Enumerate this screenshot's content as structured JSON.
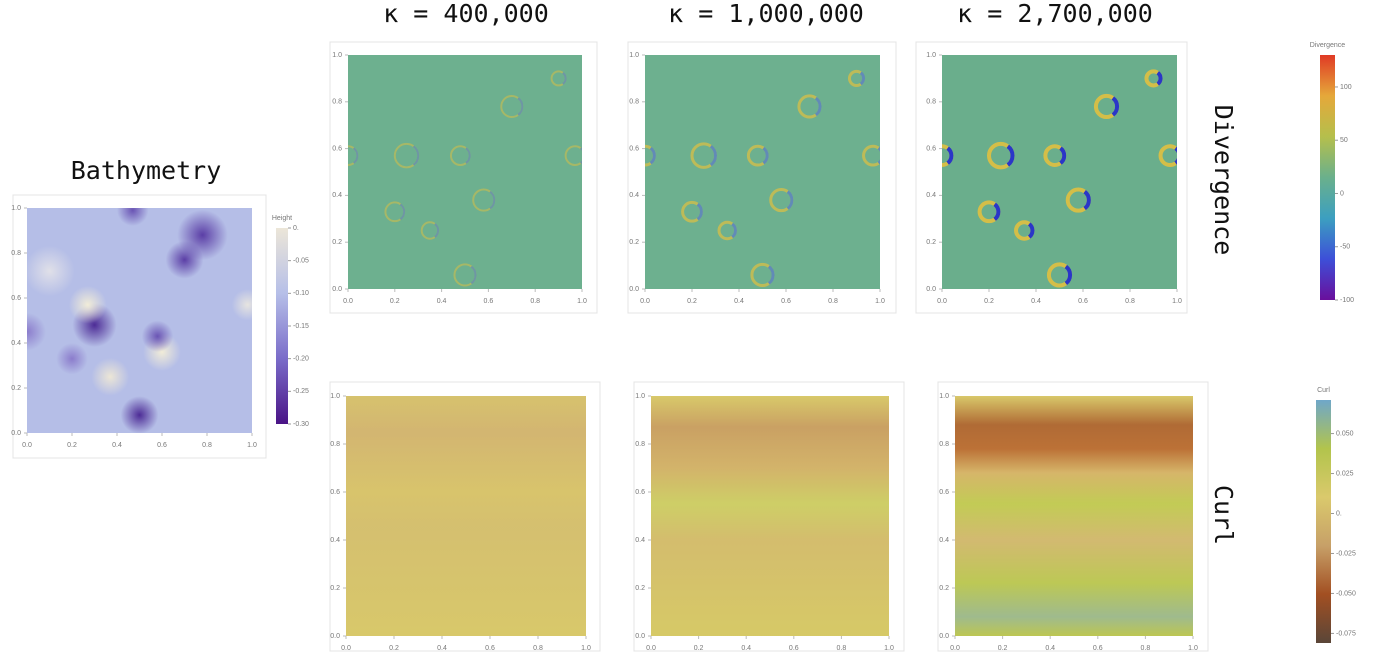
{
  "row_labels": [
    "Divergence",
    "Curl"
  ],
  "chart_data": [
    {
      "type": "heatmap",
      "title": "Bathymetry",
      "color": "#b5bee7",
      "xlim": [
        0,
        1
      ],
      "ylim": [
        0,
        1
      ],
      "xticks": [
        {
          "value": 0,
          "label": "0.0"
        },
        0.2,
        0.4,
        0.6,
        0.8,
        {
          "value": 1,
          "label": "1.0"
        }
      ],
      "yticks": [
        {
          "value": 0,
          "label": "0.0"
        },
        0.2,
        0.4,
        0.6,
        0.8,
        {
          "value": 1,
          "label": "1.0"
        }
      ]
    },
    {
      "type": "heatmap",
      "title": "κ = 400,000",
      "color": "#6db08f",
      "xlim": [
        0,
        1
      ],
      "ylim": [
        0,
        1
      ],
      "xticks": [
        {
          "value": 0,
          "label": "0.0"
        },
        0.2,
        0.4,
        0.6,
        0.8,
        {
          "value": 1,
          "label": "1.0"
        }
      ],
      "yticks": [
        {
          "value": 0,
          "label": "0.0"
        },
        0.2,
        0.4,
        0.6,
        0.8,
        {
          "value": 1,
          "label": "1.0"
        }
      ]
    },
    {
      "type": "heatmap",
      "title": "κ = 1,000,000",
      "color": "#6db08f",
      "xlim": [
        0,
        1
      ],
      "ylim": [
        0,
        1
      ],
      "xticks": [
        {
          "value": 0,
          "label": "0.0"
        },
        0.2,
        0.4,
        0.6,
        0.8,
        {
          "value": 1,
          "label": "1.0"
        }
      ],
      "yticks": [
        {
          "value": 0,
          "label": "0.0"
        },
        0.2,
        0.4,
        0.6,
        0.8,
        {
          "value": 1,
          "label": "1.0"
        }
      ]
    },
    {
      "type": "heatmap",
      "title": "κ = 2,700,000",
      "color": "#6aae8c",
      "xlim": [
        0,
        1
      ],
      "ylim": [
        0,
        1
      ],
      "xticks": [
        {
          "value": 0,
          "label": "0.0"
        },
        0.2,
        0.4,
        0.6,
        0.8,
        {
          "value": 1,
          "label": "1.0"
        }
      ],
      "yticks": [
        {
          "value": 0,
          "label": "0.0"
        },
        0.2,
        0.4,
        0.6,
        0.8,
        {
          "value": 1,
          "label": "1.0"
        }
      ]
    },
    {
      "type": "heatmap",
      "color": "#d8c36c",
      "xlim": [
        0,
        1
      ],
      "ylim": [
        0,
        1
      ],
      "xticks": [
        {
          "value": 0,
          "label": "0.0"
        },
        0.2,
        0.4,
        0.6,
        0.8,
        {
          "value": 1,
          "label": "1.0"
        }
      ],
      "yticks": [
        {
          "value": 0,
          "label": "0.0"
        },
        0.2,
        0.4,
        0.6,
        0.8,
        {
          "value": 1,
          "label": "1.0"
        }
      ]
    },
    {
      "type": "heatmap",
      "color": "#d8c66a",
      "xlim": [
        0,
        1
      ],
      "ylim": [
        0,
        1
      ],
      "xticks": [
        {
          "value": 0,
          "label": "0.0"
        },
        0.2,
        0.4,
        0.6,
        0.8,
        {
          "value": 1,
          "label": "1.0"
        }
      ],
      "yticks": [
        {
          "value": 0,
          "label": "0.0"
        },
        0.2,
        0.4,
        0.6,
        0.8,
        {
          "value": 1,
          "label": "1.0"
        }
      ]
    },
    {
      "type": "heatmap",
      "color": "#d6c868",
      "xlim": [
        0,
        1
      ],
      "ylim": [
        0,
        1
      ],
      "xticks": [
        {
          "value": 0,
          "label": "0.0"
        },
        0.2,
        0.4,
        0.6,
        0.8,
        {
          "value": 1,
          "label": "1.0"
        }
      ],
      "yticks": [
        {
          "value": 0,
          "label": "0.0"
        },
        0.2,
        0.4,
        0.6,
        0.8,
        {
          "value": 1,
          "label": "1.0"
        }
      ]
    },
    {
      "type": "colorbar",
      "title": "Height",
      "lim": [
        -0.3,
        0
      ],
      "colors": [
        "#4a1486",
        "#7a6cc9",
        "#b6bfe8",
        "#ece6d8"
      ],
      "ticks": [
        {
          "value": 0,
          "label": "0."
        },
        -0.05,
        {
          "value": -0.1,
          "label": "-0.10"
        },
        -0.15,
        {
          "value": -0.2,
          "label": "-0.20"
        },
        -0.25,
        {
          "value": -0.3,
          "label": "-0.30"
        }
      ]
    },
    {
      "type": "colorbar",
      "title": "Divergence",
      "lim": [
        -100,
        130
      ],
      "colors": [
        "#6a0f9c",
        "#3d4fd8",
        "#3c9fc0",
        "#6ab08c",
        "#b5bf4c",
        "#e5a83a",
        "#e03a25"
      ],
      "ticks": [
        100,
        50,
        0,
        -50,
        -100
      ]
    },
    {
      "type": "colorbar",
      "title": "Curl",
      "lim": [
        -0.081,
        0.071
      ],
      "colors": [
        "#5a4638",
        "#a24f22",
        "#c7a068",
        "#dac96c",
        "#b2c44c",
        "#6fa7c9"
      ],
      "ticks": [
        {
          "value": 0.05,
          "label": "0.050"
        },
        0.025,
        {
          "value": 0,
          "label": "0."
        },
        -0.025,
        {
          "value": -0.05,
          "label": "-0.050"
        },
        -0.075
      ]
    }
  ]
}
